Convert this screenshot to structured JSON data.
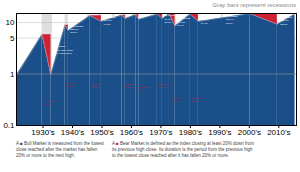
{
  "chart_data": {
    "type": "area",
    "subtitle": "Gray bars represent recessions",
    "log": "y",
    "grid": true,
    "xlim": [
      1921,
      2016
    ],
    "ylim": [
      0.1,
      15
    ],
    "xticks": [
      {
        "value": 1930,
        "label": "1930's"
      },
      {
        "value": 1940,
        "label": "1940's"
      },
      {
        "value": 1950,
        "label": "1950's"
      },
      {
        "value": 1960,
        "label": "1960's"
      },
      {
        "value": 1970,
        "label": "1970's"
      },
      {
        "value": 1980,
        "label": "1980's"
      },
      {
        "value": 1990,
        "label": "1990's"
      },
      {
        "value": 2000,
        "label": "2000's"
      },
      {
        "value": 2010,
        "label": "2010's"
      }
    ],
    "yticks": [
      0.1,
      1,
      5,
      10
    ],
    "reference_lines": [
      1
    ],
    "segment_types": [
      {
        "type": "bull",
        "color": "#1a4f8a"
      },
      {
        "type": "bear",
        "color": "#cc2233"
      }
    ],
    "recessions": {
      "color": "#d8d8d8",
      "spans": [
        [
          1929.7,
          1933.2
        ],
        [
          1937.5,
          1938.6
        ],
        [
          1945.1,
          1945.9
        ],
        [
          1948.8,
          1949.8
        ],
        [
          1953.6,
          1954.4
        ],
        [
          1957.7,
          1958.4
        ],
        [
          1960.3,
          1961.1
        ],
        [
          1969.9,
          1970.9
        ],
        [
          1973.9,
          1975.2
        ],
        [
          1980.0,
          1980.7
        ],
        [
          1981.6,
          1982.9
        ],
        [
          1990.6,
          1991.2
        ],
        [
          2001.2,
          2001.9
        ],
        [
          2007.9,
          2009.5
        ]
      ]
    },
    "segments": [
      {
        "type": "bull",
        "start": 1921.3,
        "end": 1929.7,
        "y_start": 1.0,
        "y_end": 5.8
      },
      {
        "type": "bear",
        "start": 1929.7,
        "end": 1932.7,
        "y_start": 5.8,
        "y_end": 0.97
      },
      {
        "type": "bull",
        "start": 1932.7,
        "end": 1937.5,
        "y_start": 0.97,
        "y_end": 8.9
      },
      {
        "type": "bear",
        "start": 1937.5,
        "end": 1938.6,
        "y_start": 8.9,
        "y_end": 6.9
      },
      {
        "type": "bull",
        "start": 1938.6,
        "end": 1946.0,
        "y_start": 6.9,
        "y_end": 13.5
      },
      {
        "type": "bear",
        "start": 1946.0,
        "end": 1949.8,
        "y_start": 13.5,
        "y_end": 10.5
      },
      {
        "type": "bull",
        "start": 1949.8,
        "end": 1956.8,
        "y_start": 10.5,
        "y_end": 13.8
      },
      {
        "type": "bear",
        "start": 1956.8,
        "end": 1957.9,
        "y_start": 13.8,
        "y_end": 11.8
      },
      {
        "type": "bull",
        "start": 1957.9,
        "end": 1961.5,
        "y_start": 11.8,
        "y_end": 14.2
      },
      {
        "type": "bear",
        "start": 1961.5,
        "end": 1962.5,
        "y_start": 14.2,
        "y_end": 11.5
      },
      {
        "type": "bull",
        "start": 1962.5,
        "end": 1968.8,
        "y_start": 11.5,
        "y_end": 14.5
      },
      {
        "type": "bear",
        "start": 1968.8,
        "end": 1970.5,
        "y_start": 14.5,
        "y_end": 11.8
      },
      {
        "type": "bull",
        "start": 1970.5,
        "end": 1972.9,
        "y_start": 11.8,
        "y_end": 14.8
      },
      {
        "type": "bear",
        "start": 1972.9,
        "end": 1974.8,
        "y_start": 14.8,
        "y_end": 8.5
      },
      {
        "type": "bull",
        "start": 1974.8,
        "end": 1980.0,
        "y_start": 8.5,
        "y_end": 14.5
      },
      {
        "type": "bear",
        "start": 1980.0,
        "end": 1982.7,
        "y_start": 14.5,
        "y_end": 10.5
      },
      {
        "type": "bull",
        "start": 1982.7,
        "end": 2000.2,
        "y_start": 10.5,
        "y_end": 14.8
      },
      {
        "type": "bear",
        "start": 2000.2,
        "end": 2009.5,
        "y_start": 14.8,
        "y_end": 9.2
      },
      {
        "type": "bull",
        "start": 2009.5,
        "end": 2015.5,
        "y_start": 9.2,
        "y_end": 14.5
      }
    ],
    "annotations": [
      {
        "x": 1921.8,
        "y": 3.2,
        "text": "44 months\n163.3%\n24.1%",
        "color": "#ffffff"
      },
      {
        "x": 1933.0,
        "y": 3.0,
        "text": "167 months\n818.3% total return\n17.2% annualized",
        "color": "#ffffff"
      },
      {
        "x": 1939.2,
        "y": 7.5,
        "text": "161 months\n855.8%\n18.8%",
        "color": "#ffffff"
      },
      {
        "x": 1950.5,
        "y": 11.0,
        "text": "77 months\n163.7%\n14.8%",
        "color": "#ffffff"
      },
      {
        "x": 1971.2,
        "y": 12.0,
        "text": "20 months\n73.8%\n28.3%",
        "color": "#ffffff"
      },
      {
        "x": 1975.5,
        "y": 10.5,
        "text": "155 months\n944.2%\n19.0%",
        "color": "#ffffff"
      },
      {
        "x": 1983.5,
        "y": 11.5,
        "text": "155 months\n916.5%\n19.0%",
        "color": "#ffffff"
      },
      {
        "x": 1992.0,
        "y": 11.5,
        "text": "61 months\n158.6%\n11.5%",
        "color": "#ffffff"
      },
      {
        "x": 2010.5,
        "y": 11.0,
        "text": "61 months\n182.8%\n22.8%",
        "color": "#ffffff"
      },
      {
        "x": 1929.9,
        "y": 0.28,
        "text": "34 months\n-83.4%",
        "color": "#cc2233"
      },
      {
        "x": 1937.6,
        "y": 0.62,
        "text": "6 months\n-21.8%",
        "color": "#cc2233"
      },
      {
        "x": 1946.2,
        "y": 0.6,
        "text": "6 months\n-22.5%",
        "color": "#cc2233"
      },
      {
        "x": 1957.0,
        "y": 0.6,
        "text": "19 months\n-28.3%",
        "color": "#cc2233"
      },
      {
        "x": 1961.7,
        "y": 0.52,
        "text": "21 months\n-42.8%",
        "color": "#cc2233"
      },
      {
        "x": 1969.0,
        "y": 0.6,
        "text": "3 months\n-28.8%",
        "color": "#cc2233"
      },
      {
        "x": 1973.2,
        "y": 0.32,
        "text": "26 months\n-44.7%",
        "color": "#cc2233"
      },
      {
        "x": 1980.2,
        "y": 0.32,
        "text": "16 months\n-50.9%",
        "color": "#cc2233"
      }
    ],
    "notes": [
      {
        "text": "A ■ Bull Market is measured from the lowest\nclose reached after the market has fallen\n20% or more to the next high.",
        "color": "#1a4f8a"
      },
      {
        "text": "A ■ Bear Market is defined as the index closing at least 20% down from\nits previous high close. Its duration is the period from the previous high\nto the lowest close reached after it has fallen 20% or more.",
        "color": "#cc2233"
      }
    ]
  }
}
